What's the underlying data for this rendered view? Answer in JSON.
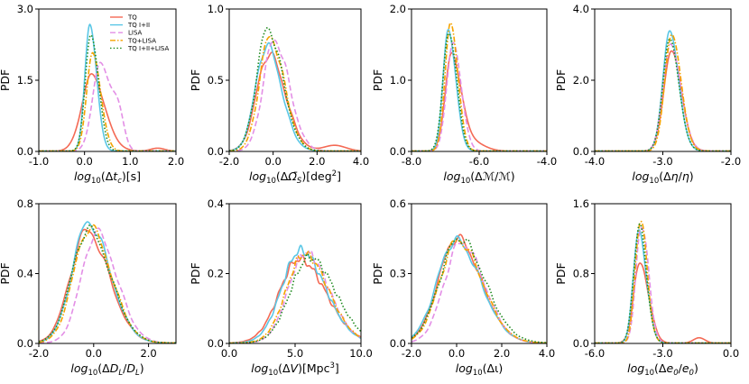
{
  "legend": [
    {
      "label": "TQ",
      "color": "#f46a55",
      "dash": "solid"
    },
    {
      "label": "TQ I+II",
      "color": "#5bc7e6",
      "dash": "solid"
    },
    {
      "label": "LISA",
      "color": "#e38fe6",
      "dash": "dashed"
    },
    {
      "label": "TQ+LISA",
      "color": "#f5a300",
      "dash": "dashdot"
    },
    {
      "label": "TQ I+II+LISA",
      "color": "#1f8a1f",
      "dash": "dotted"
    }
  ],
  "chart_data": [
    {
      "type": "line",
      "ylabel": "PDF",
      "xlabel": "log10(Δtc)[s]",
      "xlim": [
        -1.0,
        2.0
      ],
      "ylim": [
        0,
        3.0
      ],
      "xticks": [
        "-1.0",
        "0.0",
        "1.0",
        "2.0"
      ],
      "yticks": [
        "0.0",
        "1.5",
        "3.0"
      ],
      "series": [
        {
          "name": "TQ",
          "peak_x": 0.15,
          "peak_y": 1.55,
          "sigma": 0.22,
          "tail": [
            1.6,
            0.06,
            0.15
          ]
        },
        {
          "name": "TQ I+II",
          "peak_x": 0.12,
          "peak_y": 2.6,
          "sigma": 0.11
        },
        {
          "name": "LISA",
          "peak_x": 0.35,
          "peak_y": 1.9,
          "sigma": 0.17,
          "tail": [
            0.75,
            0.6,
            0.12
          ]
        },
        {
          "name": "TQ+LISA",
          "peak_x": 0.18,
          "peak_y": 2.1,
          "sigma": 0.13
        },
        {
          "name": "TQ I+II+LISA",
          "peak_x": 0.14,
          "peak_y": 2.55,
          "sigma": 0.12
        }
      ]
    },
    {
      "type": "line",
      "ylabel": "PDF",
      "xlabel": "log10(ΔΩS)[deg2]",
      "xlim": [
        -2.0,
        4.0
      ],
      "ylim": [
        0,
        1.0
      ],
      "xticks": [
        "-2.0",
        "0.0",
        "2.0",
        "4.0"
      ],
      "yticks": [
        "0.0",
        "0.5",
        "1.0"
      ],
      "series": [
        {
          "name": "TQ",
          "peak_x": -0.2,
          "peak_y": 0.68,
          "sigma": 0.55,
          "tail": [
            2.8,
            0.04,
            0.5
          ]
        },
        {
          "name": "TQ I+II",
          "peak_x": -0.3,
          "peak_y": 0.74,
          "sigma": 0.5
        },
        {
          "name": "LISA",
          "peak_x": 0.05,
          "peak_y": 0.78,
          "sigma": 0.5
        },
        {
          "name": "TQ+LISA",
          "peak_x": -0.15,
          "peak_y": 0.8,
          "sigma": 0.48
        },
        {
          "name": "TQ I+II+LISA",
          "peak_x": -0.25,
          "peak_y": 0.86,
          "sigma": 0.5
        }
      ]
    },
    {
      "type": "line",
      "ylabel": "PDF",
      "xlabel": "log10(ΔM/M)",
      "xlim": [
        -8.0,
        -4.0
      ],
      "ylim": [
        0,
        2.0
      ],
      "xticks": [
        "-8.0",
        "-6.0",
        "-4.0"
      ],
      "yticks": [
        "0.0",
        "1.0",
        "2.0"
      ],
      "series": [
        {
          "name": "TQ",
          "peak_x": -6.8,
          "peak_y": 1.32,
          "sigma": 0.2,
          "tail": [
            -6.2,
            0.12,
            0.35
          ]
        },
        {
          "name": "TQ I+II",
          "peak_x": -6.9,
          "peak_y": 1.7,
          "sigma": 0.16
        },
        {
          "name": "LISA",
          "peak_x": -6.78,
          "peak_y": 1.55,
          "sigma": 0.18
        },
        {
          "name": "TQ+LISA",
          "peak_x": -6.85,
          "peak_y": 1.82,
          "sigma": 0.16
        },
        {
          "name": "TQ I+II+LISA",
          "peak_x": -6.9,
          "peak_y": 1.68,
          "sigma": 0.17
        }
      ]
    },
    {
      "type": "line",
      "ylabel": "PDF",
      "xlabel": "log10(Δη/η)",
      "xlim": [
        -4.0,
        -2.0
      ],
      "ylim": [
        0,
        4.0
      ],
      "xticks": [
        "-4.0",
        "-3.0",
        "-2.0"
      ],
      "yticks": [
        "0.0",
        "2.0",
        "4.0"
      ],
      "series": [
        {
          "name": "TQ",
          "peak_x": -2.88,
          "peak_y": 2.75,
          "sigma": 0.11
        },
        {
          "name": "TQ I+II",
          "peak_x": -2.9,
          "peak_y": 3.2,
          "sigma": 0.1
        },
        {
          "name": "LISA",
          "peak_x": -2.88,
          "peak_y": 3.0,
          "sigma": 0.11
        },
        {
          "name": "TQ+LISA",
          "peak_x": -2.87,
          "peak_y": 3.38,
          "sigma": 0.1
        },
        {
          "name": "TQ I+II+LISA",
          "peak_x": -2.9,
          "peak_y": 3.2,
          "sigma": 0.1
        }
      ]
    },
    {
      "type": "line",
      "ylabel": "PDF",
      "xlabel": "log10(ΔDL/DL)",
      "xlim": [
        -2.0,
        3.0
      ],
      "ylim": [
        0,
        0.8
      ],
      "xticks": [
        "-2.0",
        "0.0",
        "2.0"
      ],
      "yticks": [
        "0.0",
        "0.4",
        "0.8"
      ],
      "series": [
        {
          "name": "TQ",
          "peak_x": -0.25,
          "peak_y": 0.64,
          "sigma": 0.6
        },
        {
          "name": "TQ I+II",
          "peak_x": -0.2,
          "peak_y": 0.69,
          "sigma": 0.58
        },
        {
          "name": "LISA",
          "peak_x": 0.1,
          "peak_y": 0.63,
          "sigma": 0.55
        },
        {
          "name": "TQ+LISA",
          "peak_x": -0.15,
          "peak_y": 0.66,
          "sigma": 0.58
        },
        {
          "name": "TQ I+II+LISA",
          "peak_x": -0.2,
          "peak_y": 0.65,
          "sigma": 0.6
        }
      ]
    },
    {
      "type": "line",
      "ylabel": "PDF",
      "xlabel": "log10(ΔV)[Mpc3]",
      "xlim": [
        0.0,
        10.0
      ],
      "ylim": [
        0,
        0.4
      ],
      "xticks": [
        "0.0",
        "5.0",
        "10.0"
      ],
      "yticks": [
        "0.0",
        "0.2",
        "0.4"
      ],
      "series": [
        {
          "name": "TQ",
          "peak_x": 5.3,
          "peak_y": 0.24,
          "sigma": 1.5
        },
        {
          "name": "TQ I+II",
          "peak_x": 5.4,
          "peak_y": 0.265,
          "sigma": 1.4
        },
        {
          "name": "LISA",
          "peak_x": 5.8,
          "peak_y": 0.26,
          "sigma": 1.3
        },
        {
          "name": "TQ+LISA",
          "peak_x": 5.7,
          "peak_y": 0.255,
          "sigma": 1.35
        },
        {
          "name": "TQ I+II+LISA",
          "peak_x": 6.1,
          "peak_y": 0.245,
          "sigma": 1.45
        }
      ]
    },
    {
      "type": "line",
      "ylabel": "PDF",
      "xlabel": "log10(Δι)",
      "xlim": [
        -2.0,
        4.0
      ],
      "ylim": [
        0,
        0.6
      ],
      "xticks": [
        "-2.0",
        "0.0",
        "2.0",
        "4.0"
      ],
      "yticks": [
        "0.0",
        "0.3",
        "0.6"
      ],
      "series": [
        {
          "name": "TQ",
          "peak_x": 0.0,
          "peak_y": 0.45,
          "sigma": 0.8
        },
        {
          "name": "TQ I+II",
          "peak_x": -0.05,
          "peak_y": 0.44,
          "sigma": 0.82
        },
        {
          "name": "LISA",
          "peak_x": 0.2,
          "peak_y": 0.43,
          "sigma": 0.75
        },
        {
          "name": "TQ+LISA",
          "peak_x": 0.05,
          "peak_y": 0.44,
          "sigma": 0.8
        },
        {
          "name": "TQ I+II+LISA",
          "peak_x": 0.1,
          "peak_y": 0.45,
          "sigma": 0.85
        }
      ]
    },
    {
      "type": "line",
      "ylabel": "PDF",
      "xlabel": "log10(Δe0/e0)",
      "xlim": [
        -6.0,
        0.0
      ],
      "ylim": [
        0,
        1.6
      ],
      "xticks": [
        "-6.0",
        "-3.0",
        "0.0"
      ],
      "yticks": [
        "0.0",
        "0.8",
        "1.6"
      ],
      "series": [
        {
          "name": "TQ",
          "peak_x": -4.0,
          "peak_y": 0.92,
          "sigma": 0.28,
          "tail": [
            -1.4,
            0.06,
            0.25
          ]
        },
        {
          "name": "TQ I+II",
          "peak_x": -4.05,
          "peak_y": 1.3,
          "sigma": 0.24
        },
        {
          "name": "LISA",
          "peak_x": -3.95,
          "peak_y": 1.38,
          "sigma": 0.23
        },
        {
          "name": "TQ+LISA",
          "peak_x": -4.0,
          "peak_y": 1.42,
          "sigma": 0.22
        },
        {
          "name": "TQ I+II+LISA",
          "peak_x": -4.05,
          "peak_y": 1.33,
          "sigma": 0.24
        }
      ]
    }
  ]
}
